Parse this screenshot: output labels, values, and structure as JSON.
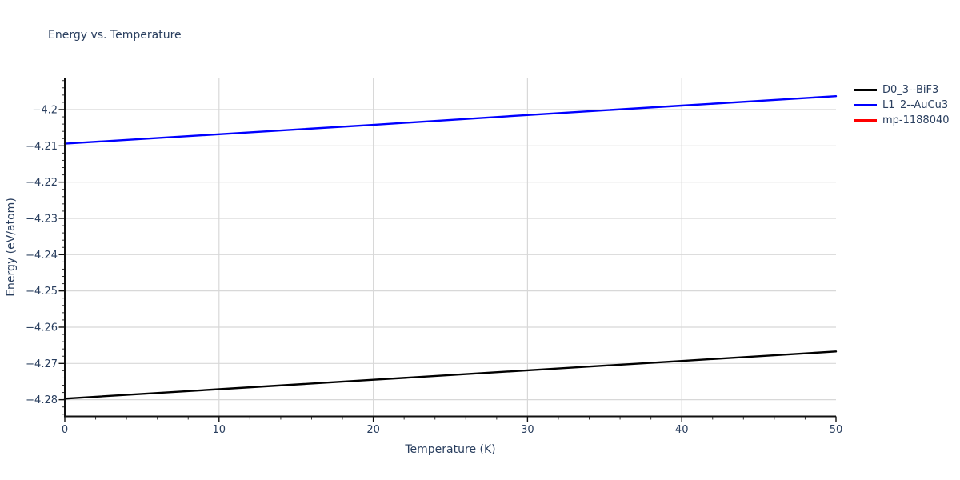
{
  "page": {
    "background": "#ffffff"
  },
  "style": {
    "text_color": "#2a3f5f",
    "grid_color": "#d8d8d8",
    "axis_color": "#111111",
    "minor_tick_color": "#333333"
  },
  "chart_data": {
    "type": "line",
    "title": "Energy vs. Temperature",
    "xlabel": "Temperature (K)",
    "ylabel": "Energy (eV/atom)",
    "xlim": [
      0,
      50
    ],
    "ylim": [
      -4.2846,
      -4.1914
    ],
    "xticks": [
      0,
      10,
      20,
      30,
      40,
      50
    ],
    "xtick_labels": [
      "0",
      "10",
      "20",
      "30",
      "40",
      "50"
    ],
    "yticks": [
      -4.2,
      -4.21,
      -4.22,
      -4.23,
      -4.24,
      -4.25,
      -4.26,
      -4.27,
      -4.28
    ],
    "ytick_labels": [
      "−4.2",
      "−4.21",
      "−4.22",
      "−4.23",
      "−4.24",
      "−4.25",
      "−4.26",
      "−4.27",
      "−4.28"
    ],
    "x_minor_step": 2,
    "y_minor_step": 0.002,
    "grid": true,
    "legend_position": "outside-top-right",
    "series": [
      {
        "name": "D0_3--BiF3",
        "color": "#000000",
        "x": [
          0,
          10,
          20,
          30,
          40,
          50
        ],
        "y": [
          -4.2797,
          -4.2771,
          -4.2745,
          -4.2719,
          -4.2693,
          -4.2667
        ]
      },
      {
        "name": "L1_2--AuCu3",
        "color": "#0000ff",
        "x": [
          0,
          10,
          20,
          30,
          40,
          50
        ],
        "y": [
          -4.2094,
          -4.2068,
          -4.2042,
          -4.2015,
          -4.1989,
          -4.1963
        ]
      },
      {
        "name": "mp-1188040",
        "color": "#ff0000",
        "x": [],
        "y": [],
        "note": "legend entry only; no visible curve within plotted range"
      }
    ]
  }
}
